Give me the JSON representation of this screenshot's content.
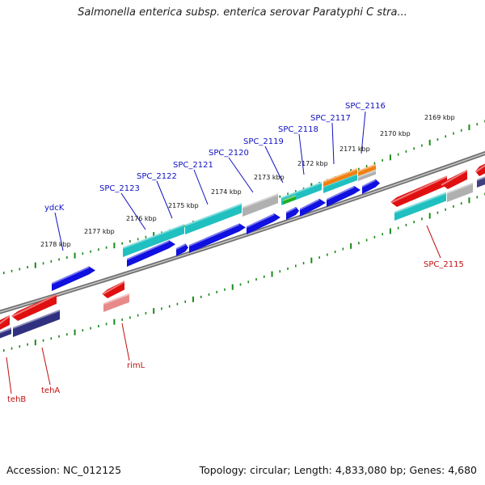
{
  "title": "Salmonella enterica subsp. enterica serovar Paratyphi C stra...",
  "footer": {
    "accession": "Accession: NC_012125",
    "topology": "Topology: circular; Length: 4,833,080 bp; Genes: 4,680"
  },
  "scale_labels": [
    "2169 kbp",
    "2170 kbp",
    "2171 kbp",
    "2172 kbp",
    "2173 kbp",
    "2174 kbp",
    "2175 kbp",
    "2176 kbp",
    "2177 kbp",
    "2178 kbp"
  ],
  "gene_labels_top": [
    "SPC_2116",
    "SPC_2117",
    "SPC_2118",
    "SPC_2119",
    "SPC_2120",
    "SPC_2121",
    "SPC_2122",
    "SPC_2123",
    "ydcK"
  ],
  "gene_labels_bottom": [
    "SPC_2115",
    "rimL",
    "tehA",
    "tehB"
  ],
  "colors": {
    "forward_cds": "#1010e0",
    "reverse_cds": "#e01010",
    "teal": "#20c0c0",
    "gray": "#b0b0b0",
    "backbone": "#707070",
    "ticks": "#1a8a1a",
    "label_blue": "#1010c0",
    "label_red": "#c01010",
    "orange": "#f08010",
    "green": "#20b020"
  }
}
